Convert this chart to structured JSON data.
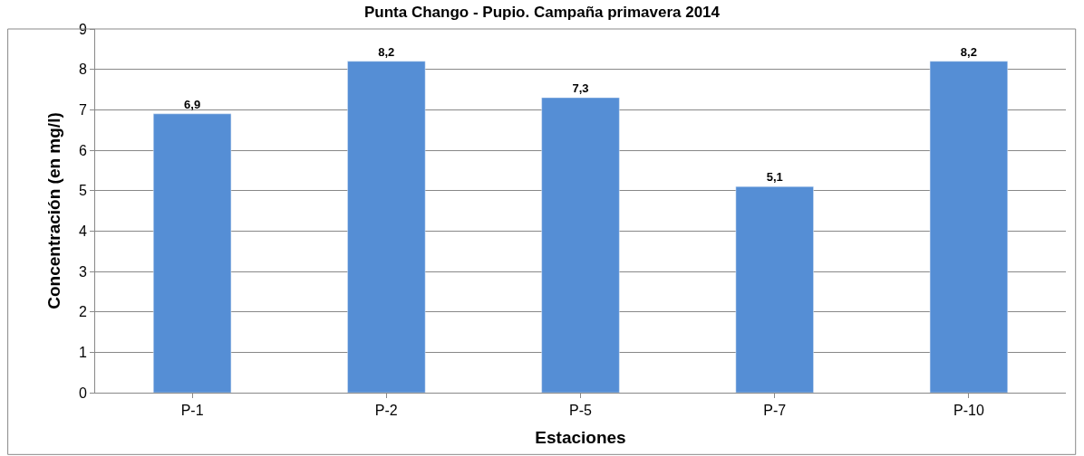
{
  "chart_data": {
    "type": "bar",
    "title": "Punta Chango - Pupio. Campaña primavera 2014",
    "xlabel": "Estaciones",
    "ylabel": "Concentración (en mg/l)",
    "categories": [
      "P-1",
      "P-2",
      "P-5",
      "P-7",
      "P-10"
    ],
    "values": [
      6.9,
      8.2,
      7.3,
      5.1,
      8.2
    ],
    "value_labels": [
      "6,9",
      "8,2",
      "7,3",
      "5,1",
      "8,2"
    ],
    "color": "#558ed5",
    "ylim": [
      0,
      9
    ],
    "yticks": [
      0,
      1,
      2,
      3,
      4,
      5,
      6,
      7,
      8,
      9
    ],
    "grid": "y",
    "legend": false
  }
}
